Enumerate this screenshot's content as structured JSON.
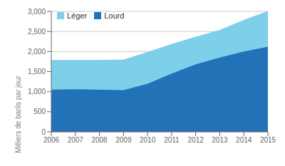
{
  "chart_data": {
    "type": "area",
    "stacked": true,
    "x": [
      2006,
      2007,
      2008,
      2009,
      2010,
      2011,
      2012,
      2013,
      2014,
      2015
    ],
    "series": [
      {
        "name": "Lourd",
        "color": "#2272b8",
        "values": [
          1050,
          1060,
          1050,
          1040,
          1200,
          1450,
          1680,
          1850,
          2000,
          2120
        ]
      },
      {
        "name": "Léger",
        "color": "#7ecfea",
        "values": [
          730,
          720,
          730,
          750,
          780,
          730,
          680,
          680,
          780,
          880
        ]
      }
    ],
    "ylabel": "Milliers de barils par jour",
    "xlim": [
      2006,
      2015
    ],
    "xticks": [
      2006,
      2007,
      2008,
      2009,
      2010,
      2011,
      2012,
      2013,
      2014,
      2015
    ],
    "ylim": [
      0,
      3000
    ],
    "yticks": [
      0,
      500,
      {
        "value": 1000,
        "label": "1,000"
      },
      {
        "value": 1500,
        "label": "1,500"
      },
      {
        "value": 2000,
        "label": "2,000"
      },
      {
        "value": 2500,
        "label": "2,500"
      },
      {
        "value": 3000,
        "label": "3,000"
      }
    ],
    "grid": true,
    "legend": "upper left"
  }
}
